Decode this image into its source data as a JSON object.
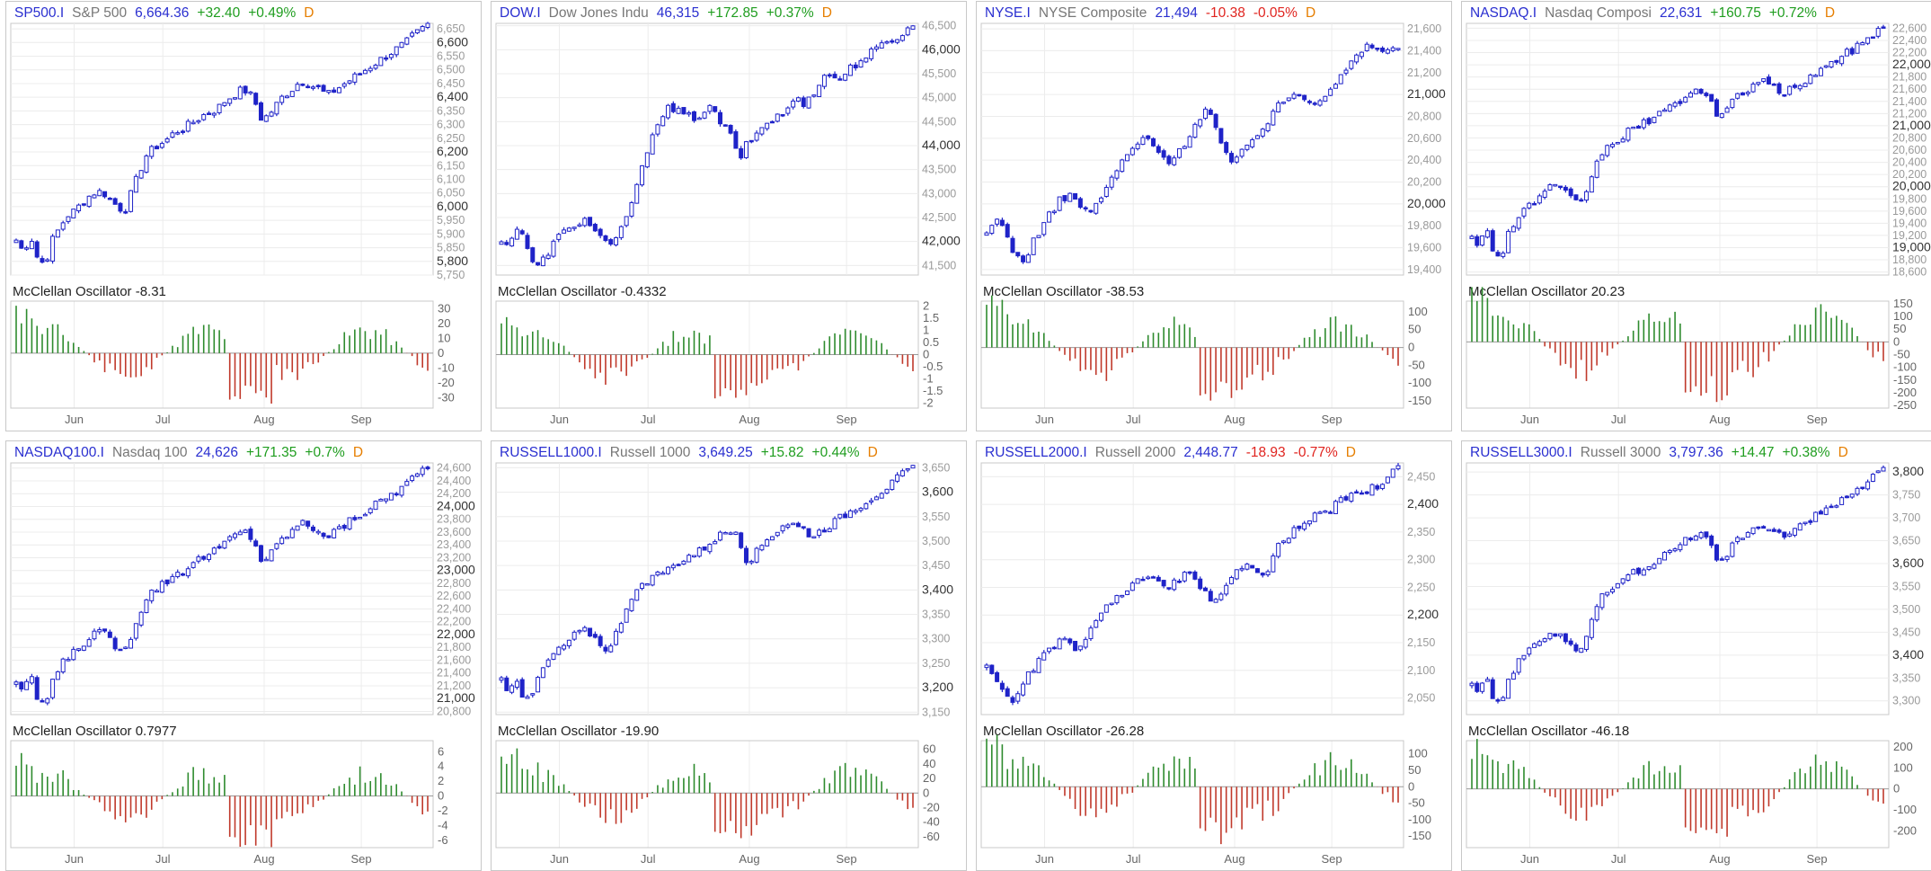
{
  "colors": {
    "up_candle": "#1f23c8",
    "osc_pos": "#2e8b2e",
    "osc_neg": "#c0392b",
    "symbol": "#2a2fd0",
    "change_up": "#1f9d1f",
    "change_down": "#e0241f",
    "freq": "#e67e00"
  },
  "months": [
    "Jun",
    "Jul",
    "Aug",
    "Sep"
  ],
  "panels": [
    {
      "symbol": "SP500.I",
      "name": "S&P 500",
      "price": "6,664.36",
      "change": "+32.40",
      "pct": "+0.49%",
      "freq": "D",
      "direction": "up",
      "oscillator": {
        "label": "McClellan Oscillator -8.31",
        "yticks": [
          "30",
          "20",
          "10",
          "0",
          "-10",
          "-20",
          "-30"
        ],
        "ymin": -37,
        "ymax": 35
      },
      "price_axis": {
        "ticks": [
          "6,650",
          "6,600",
          "6,550",
          "6,500",
          "6,450",
          "6,400",
          "6,350",
          "6,300",
          "6,250",
          "6,200",
          "6,150",
          "6,100",
          "6,050",
          "6,000",
          "5,950",
          "5,900",
          "5,850",
          "5,800",
          "5,750"
        ],
        "bold": [
          "6,600",
          "6,400",
          "6,200",
          "6,000",
          "5,800"
        ],
        "min": 5750,
        "max": 6670
      },
      "chart_data": {
        "type": "candlestick",
        "start": 5900,
        "end": 6664,
        "low": 5790,
        "high": 6670,
        "title": "SP500.I S&P 500",
        "osc_first": -8.31,
        "shape": "sp"
      }
    },
    {
      "symbol": "DOW.I",
      "name": "Dow Jones Indu",
      "price": "46,315",
      "change": "+172.85",
      "pct": "+0.37%",
      "freq": "D",
      "direction": "up",
      "oscillator": {
        "label": "McClellan Oscillator -0.4332",
        "yticks": [
          "2",
          "1.5",
          "1",
          "0.5",
          "0",
          "-0.5",
          "-1",
          "-1.5",
          "-2"
        ],
        "ymin": -2.2,
        "ymax": 2.2
      },
      "price_axis": {
        "ticks": [
          "46,500",
          "46,000",
          "45,500",
          "45,000",
          "44,500",
          "44,000",
          "43,500",
          "43,000",
          "42,500",
          "42,000",
          "41,500"
        ],
        "bold": [
          "46,000",
          "44,000",
          "42,000"
        ],
        "min": 41300,
        "max": 46550
      },
      "chart_data": {
        "type": "candlestick",
        "start": 42000,
        "end": 46315,
        "low": 41450,
        "high": 46500,
        "shape": "dow"
      }
    },
    {
      "symbol": "NYSE.I",
      "name": "NYSE Composite",
      "price": "21,494",
      "change": "-10.38",
      "pct": "-0.05%",
      "freq": "D",
      "direction": "down",
      "oscillator": {
        "label": "McClellan Oscillator -38.53",
        "yticks": [
          "100",
          "50",
          "0",
          "-50",
          "-100",
          "-150"
        ],
        "ymin": -170,
        "ymax": 130
      },
      "price_axis": {
        "ticks": [
          "21,600",
          "21,400",
          "21,200",
          "21,000",
          "20,800",
          "20,600",
          "20,400",
          "20,200",
          "20,000",
          "19,800",
          "19,600",
          "19,400"
        ],
        "bold": [
          "21,000",
          "20,000"
        ],
        "min": 19350,
        "max": 21650
      },
      "chart_data": {
        "type": "candlestick",
        "start": 19700,
        "end": 21494,
        "low": 19450,
        "high": 21560,
        "shape": "nyse"
      }
    },
    {
      "symbol": "NASDAQ.I",
      "name": "Nasdaq Composi",
      "price": "22,631",
      "change": "+160.75",
      "pct": "+0.72%",
      "freq": "D",
      "direction": "up",
      "oscillator": {
        "label": "McClellan Oscillator 20.23",
        "yticks": [
          "150",
          "100",
          "50",
          "0",
          "-50",
          "-100",
          "-150",
          "-200",
          "-250"
        ],
        "ymin": -260,
        "ymax": 160
      },
      "price_axis": {
        "ticks": [
          "22,600",
          "22,400",
          "22,200",
          "22,000",
          "21,800",
          "21,600",
          "21,400",
          "21,200",
          "21,000",
          "20,800",
          "20,600",
          "20,400",
          "20,200",
          "20,000",
          "19,800",
          "19,600",
          "19,400",
          "19,200",
          "19,000",
          "18,800",
          "18,600"
        ],
        "bold": [
          "22,000",
          "21,000",
          "20,000",
          "19,000"
        ],
        "min": 18550,
        "max": 22680
      },
      "chart_data": {
        "type": "candlestick",
        "start": 19100,
        "end": 22631,
        "low": 18850,
        "high": 22650,
        "shape": "sp"
      }
    },
    {
      "symbol": "NASDAQ100.I",
      "name": "Nasdaq 100",
      "price": "24,626",
      "change": "+171.35",
      "pct": "+0.7%",
      "freq": "D",
      "direction": "up",
      "oscillator": {
        "label": "McClellan Oscillator 0.7977",
        "yticks": [
          "6",
          "4",
          "2",
          "0",
          "-2",
          "-4",
          "-6"
        ],
        "ymin": -7,
        "ymax": 7.5
      },
      "price_axis": {
        "ticks": [
          "24,600",
          "24,400",
          "24,200",
          "24,000",
          "23,800",
          "23,600",
          "23,400",
          "23,200",
          "23,000",
          "22,800",
          "22,600",
          "22,400",
          "22,200",
          "22,000",
          "21,800",
          "21,600",
          "21,400",
          "21,200",
          "21,000",
          "20,800"
        ],
        "bold": [
          "24,000",
          "23,000",
          "22,000",
          "21,000"
        ],
        "min": 20750,
        "max": 24680
      },
      "chart_data": {
        "type": "candlestick",
        "start": 21300,
        "end": 24626,
        "low": 20900,
        "high": 24650,
        "shape": "sp"
      }
    },
    {
      "symbol": "RUSSELL1000.I",
      "name": "Russell 1000",
      "price": "3,649.25",
      "change": "+15.82",
      "pct": "+0.44%",
      "freq": "D",
      "direction": "up",
      "oscillator": {
        "label": "McClellan Oscillator -19.90",
        "yticks": [
          "60",
          "40",
          "20",
          "0",
          "-20",
          "-40",
          "-60"
        ],
        "ymin": -75,
        "ymax": 72
      },
      "price_axis": {
        "ticks": [
          "3,650",
          "3,600",
          "3,550",
          "3,500",
          "3,450",
          "3,400",
          "3,350",
          "3,300",
          "3,250",
          "3,200",
          "3,150"
        ],
        "bold": [
          "3,600",
          "3,400",
          "3,200"
        ],
        "min": 3145,
        "max": 3660
      },
      "chart_data": {
        "type": "candlestick",
        "start": 3235,
        "end": 3649,
        "low": 3170,
        "high": 3655,
        "shape": "sp"
      }
    },
    {
      "symbol": "RUSSELL2000.I",
      "name": "Russell 2000",
      "price": "2,448.77",
      "change": "-18.93",
      "pct": "-0.77%",
      "freq": "D",
      "direction": "down",
      "oscillator": {
        "label": "McClellan Oscillator -26.28",
        "yticks": [
          "100",
          "50",
          "0",
          "-50",
          "-100",
          "-150"
        ],
        "ymin": -185,
        "ymax": 140
      },
      "price_axis": {
        "ticks": [
          "2,450",
          "2,400",
          "2,350",
          "2,300",
          "2,250",
          "2,200",
          "2,150",
          "2,100",
          "2,050"
        ],
        "bold": [
          "2,400",
          "2,200"
        ],
        "min": 2020,
        "max": 2475
      },
      "chart_data": {
        "type": "candlestick",
        "start": 2090,
        "end": 2448,
        "low": 2040,
        "high": 2470,
        "shape": "r2k"
      }
    },
    {
      "symbol": "RUSSELL3000.I",
      "name": "Russell 3000",
      "price": "3,797.36",
      "change": "+14.47",
      "pct": "+0.38%",
      "freq": "D",
      "direction": "up",
      "oscillator": {
        "label": "McClellan Oscillator -46.18",
        "yticks": [
          "200",
          "100",
          "0",
          "-100",
          "-200"
        ],
        "ymin": -280,
        "ymax": 230
      },
      "price_axis": {
        "ticks": [
          "3,800",
          "3,750",
          "3,700",
          "3,650",
          "3,600",
          "3,550",
          "3,500",
          "3,450",
          "3,400",
          "3,350",
          "3,300"
        ],
        "bold": [
          "3,800",
          "3,600",
          "3,400"
        ],
        "min": 3270,
        "max": 3820
      },
      "chart_data": {
        "type": "candlestick",
        "start": 3360,
        "end": 3797,
        "low": 3295,
        "high": 3810,
        "shape": "sp"
      }
    }
  ]
}
